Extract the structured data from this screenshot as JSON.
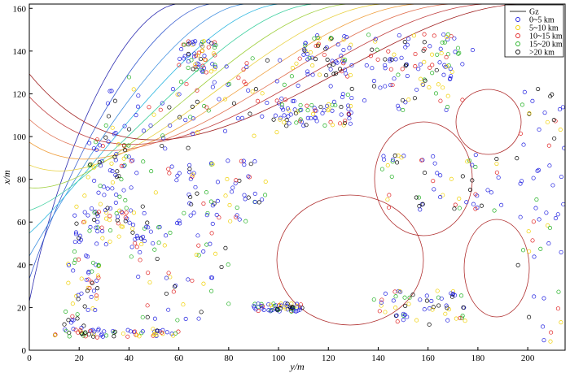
{
  "chart_data": {
    "type": "scatter",
    "xlabel": "y/m",
    "ylabel": "x/m",
    "xlim": [
      0,
      215
    ],
    "ylim": [
      0,
      162
    ],
    "x_ticks": [
      "0",
      "20",
      "40",
      "60",
      "80",
      "100",
      "120",
      "140",
      "160",
      "180",
      "200"
    ],
    "y_ticks": [
      "0",
      "20",
      "40",
      "60",
      "80",
      "100",
      "120",
      "140",
      "160"
    ],
    "grid": false,
    "legend_position": "top-right",
    "legend": [
      "Gz",
      "0~5 km",
      "5~10 km",
      "10~15 km",
      "15~20 km",
      ">20 km"
    ],
    "colors": {
      "Gz": "#333333",
      "0~5 km": "#1f1fe0",
      "5~10 km": "#f0d000",
      "10~15 km": "#e02020",
      "15~20 km": "#20b020",
      ">20 km": "#000000"
    },
    "contour_colors": [
      "#2b2bb0",
      "#3a5fd0",
      "#3f8fe0",
      "#30b8e0",
      "#40d0a0",
      "#a0d040",
      "#e8d040",
      "#f0a040",
      "#e07050",
      "#c04040",
      "#a02020"
    ],
    "clusters": [
      {
        "x": [
          10,
          60
        ],
        "y": [
          6,
          10
        ]
      },
      {
        "x": [
          14,
          28
        ],
        "y": [
          8,
          48
        ]
      },
      {
        "x": [
          18,
          48
        ],
        "y": [
          48,
          68
        ]
      },
      {
        "x": [
          22,
          40
        ],
        "y": [
          60,
          100
        ]
      },
      {
        "x": [
          30,
          70
        ],
        "y": [
          72,
          128
        ]
      },
      {
        "x": [
          60,
          110
        ],
        "y": [
          100,
          138
        ]
      },
      {
        "x": [
          110,
          130
        ],
        "y": [
          128,
          148
        ]
      },
      {
        "x": [
          40,
          80
        ],
        "y": [
          14,
          60
        ]
      },
      {
        "x": [
          60,
          95
        ],
        "y": [
          60,
          90
        ]
      },
      {
        "x": [
          100,
          130
        ],
        "y": [
          105,
          115
        ]
      },
      {
        "x": [
          120,
          175
        ],
        "y": [
          112,
          135
        ]
      },
      {
        "x": [
          135,
          178
        ],
        "y": [
          132,
          148
        ]
      },
      {
        "x": [
          140,
          190
        ],
        "y": [
          65,
          92
        ]
      },
      {
        "x": [
          138,
          175
        ],
        "y": [
          12,
          28
        ]
      },
      {
        "x": [
          195,
          215
        ],
        "y": [
          2,
          125
        ]
      },
      {
        "x": [
          60,
          75
        ],
        "y": [
          130,
          145
        ]
      },
      {
        "x": [
          90,
          110
        ],
        "y": [
          18,
          22
        ]
      }
    ]
  }
}
